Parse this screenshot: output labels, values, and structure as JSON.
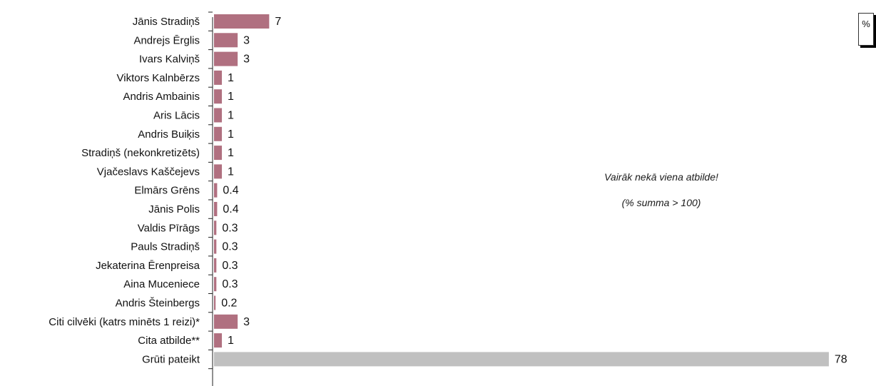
{
  "unit_label": "%",
  "note": {
    "line1": "Vairāk nekā viena atbilde!",
    "line2": "(% summa > 100)"
  },
  "colors": {
    "bar": "#b07080",
    "bar_last": "#c0c0c0"
  },
  "chart_data": {
    "type": "bar",
    "orientation": "horizontal",
    "categories": [
      "Jānis Stradiņš",
      "Andrejs Ērglis",
      "Ivars Kalviņš",
      "Viktors Kalnbērzs",
      "Andris Ambainis",
      "Aris Lācis",
      "Andris Buiķis",
      "Stradiņš (nekonkretizēts)",
      "Vjačeslavs Kaščejevs",
      "Elmārs Grēns",
      "Jānis Polis",
      "Valdis Pīrāgs",
      "Pauls Stradiņš",
      "Jekaterina Ērenpreisa",
      "Aina Muceniece",
      "Andris Šteinbergs",
      "Citi cilvēki (katrs minēts 1 reizi)*",
      "Cita atbilde**",
      "Grūti pateikt"
    ],
    "values": [
      7,
      3,
      3,
      1,
      1,
      1,
      1,
      1,
      1,
      0.4,
      0.4,
      0.3,
      0.3,
      0.3,
      0.3,
      0.2,
      3,
      1,
      78
    ],
    "value_labels": [
      "7",
      "3",
      "3",
      "1",
      "1",
      "1",
      "1",
      "1",
      "1",
      "0.4",
      "0.4",
      "0.3",
      "0.3",
      "0.3",
      "0.3",
      "0.2",
      "3",
      "1",
      "78"
    ],
    "xlim": [
      0,
      80
    ],
    "grid": false,
    "legend": "none"
  }
}
